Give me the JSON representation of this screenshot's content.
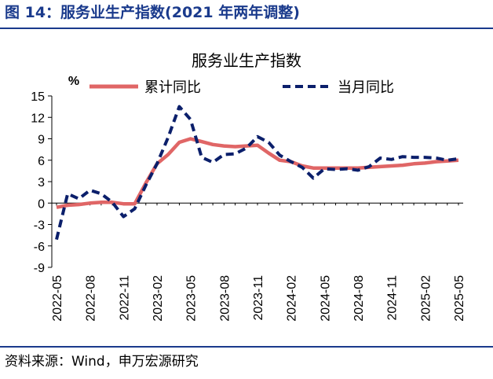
{
  "figure_title": "图 14：服务业生产指数(2021 年两年调整)",
  "source_text": "资料来源：Wind，申万宏源研究",
  "colors": {
    "title": "#1a3a8c",
    "cumulative": "#e06666",
    "monthly": "#0b1f6b"
  },
  "chart_data": {
    "type": "line",
    "title": "服务业生产指数",
    "ylabel": "%",
    "ylim": [
      -9,
      15
    ],
    "yticks": [
      15,
      12,
      9,
      6,
      3,
      0,
      -3,
      -6,
      -9
    ],
    "xticks": [
      "2022-05",
      "2022-08",
      "2022-11",
      "2023-02",
      "2023-05",
      "2023-08",
      "2023-11",
      "2024-02",
      "2024-05",
      "2024-08",
      "2024-11",
      "2025-02",
      "2025-05"
    ],
    "x": [
      "2022-05",
      "2022-06",
      "2022-07",
      "2022-08",
      "2022-09",
      "2022-10",
      "2022-11",
      "2022-12",
      "2023-01",
      "2023-02",
      "2023-03",
      "2023-04",
      "2023-05",
      "2023-06",
      "2023-07",
      "2023-08",
      "2023-09",
      "2023-10",
      "2023-11",
      "2023-12",
      "2024-01",
      "2024-02",
      "2024-03",
      "2024-04",
      "2024-05",
      "2024-06",
      "2024-07",
      "2024-08",
      "2024-09",
      "2024-10",
      "2024-11",
      "2024-12",
      "2025-01",
      "2025-02",
      "2025-03",
      "2025-04",
      "2025-05"
    ],
    "series": [
      {
        "name": "累计同比",
        "style": "solid",
        "values": [
          -0.6,
          -0.3,
          -0.2,
          0.0,
          0.1,
          0.1,
          -0.1,
          -0.1,
          2.8,
          5.5,
          6.8,
          8.5,
          9.0,
          8.6,
          8.2,
          8.0,
          7.9,
          8.0,
          8.1,
          7.0,
          6.0,
          5.8,
          5.2,
          4.9,
          4.9,
          4.9,
          4.9,
          4.9,
          5.0,
          5.1,
          5.2,
          5.3,
          5.5,
          5.6,
          5.8,
          5.9,
          6.0
        ]
      },
      {
        "name": "当月同比",
        "style": "dashed",
        "values": [
          -5.1,
          1.3,
          0.6,
          1.8,
          1.3,
          0.1,
          -1.9,
          -0.8,
          2.5,
          5.5,
          9.2,
          13.5,
          11.7,
          6.4,
          5.7,
          6.8,
          6.9,
          7.7,
          9.3,
          8.5,
          6.7,
          5.8,
          5.0,
          3.5,
          4.8,
          4.7,
          4.8,
          4.6,
          5.1,
          6.3,
          6.1,
          6.5,
          6.4,
          6.4,
          6.3,
          6.0,
          6.2
        ]
      }
    ]
  }
}
